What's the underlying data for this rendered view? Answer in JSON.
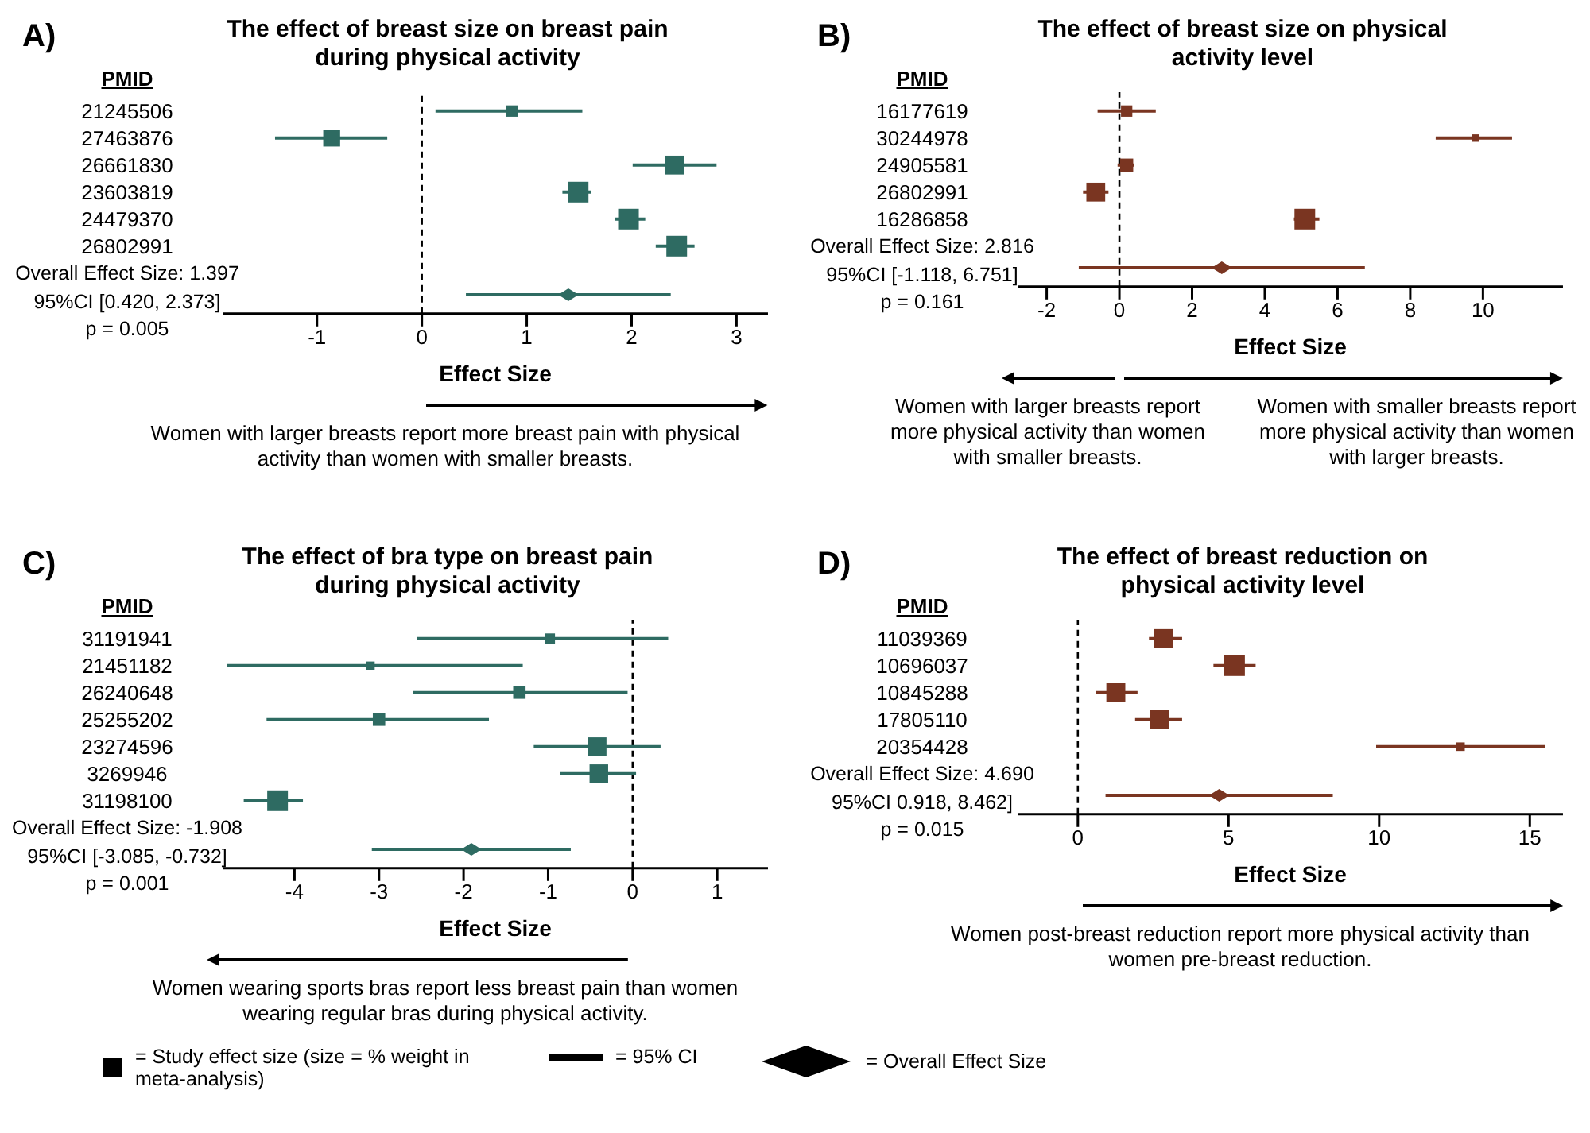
{
  "chart_data": [
    {
      "type": "bubble",
      "orientation": "horizontal",
      "title": "The effect of breast size on breast pain during physical activity",
      "ylabel": "PMID",
      "xlabel": "Effect Size",
      "categories": [
        "21245506",
        "27463876",
        "26661830",
        "23603819",
        "24479370",
        "26802991",
        null
      ],
      "xlim": [
        -1.9,
        3.3
      ],
      "xticks": [
        -1,
        0,
        1,
        2,
        3
      ],
      "ref_lines": [
        {
          "axis": "x",
          "value": 0,
          "line_style": "dashed"
        }
      ],
      "series": [
        {
          "type": "bubble",
          "marker": "square",
          "color": "#2e6b62",
          "values": [
            0.86,
            -0.86,
            2.41,
            1.49,
            1.97,
            2.43,
            null
          ],
          "sizes": [
            0.3,
            0.67,
            0.83,
            1,
            1,
            1,
            null
          ],
          "errors": [
            [
              0.13,
              1.53
            ],
            [
              -1.4,
              -0.33
            ],
            [
              2.01,
              2.81
            ],
            [
              1.34,
              1.61
            ],
            [
              1.84,
              2.13
            ],
            [
              2.23,
              2.6
            ],
            null
          ]
        },
        {
          "type": "scatter",
          "marker": "diamond",
          "color": "#2e6b62",
          "values": [
            null,
            null,
            null,
            null,
            null,
            null,
            1.397
          ],
          "errors": [
            null,
            null,
            null,
            null,
            null,
            null,
            [
              0.42,
              2.373
            ]
          ]
        }
      ],
      "annotations": [
        "A)",
        "Overall Effect Size: 1.397",
        "95%CI [0.420, 2.373]",
        "p = 0.005",
        "Women with larger breasts report more breast pain with physical activity than women with smaller breasts."
      ]
    },
    {
      "type": "bubble",
      "orientation": "horizontal",
      "title": "The effect of breast size on physical activity level",
      "ylabel": "PMID",
      "xlabel": "Effect Size",
      "categories": [
        "16177619",
        "30244978",
        "24905581",
        "26802991",
        "16286858",
        null
      ],
      "xlim": [
        -2.8,
        12.2
      ],
      "xticks": [
        -2,
        0,
        2,
        4,
        6,
        8,
        10
      ],
      "ref_lines": [
        {
          "axis": "x",
          "value": 0,
          "line_style": "dashed"
        }
      ],
      "series": [
        {
          "type": "bubble",
          "marker": "square",
          "color": "#7a3521",
          "values": [
            0.2,
            9.8,
            0.2,
            -0.65,
            5.1,
            null
          ],
          "sizes": [
            0.3,
            0.13,
            0.4,
            0.83,
            1,
            null
          ],
          "errors": [
            [
              -0.6,
              1.0
            ],
            [
              8.7,
              10.8
            ],
            [
              -0.05,
              0.4
            ],
            [
              -1.0,
              -0.3
            ],
            [
              4.8,
              5.5
            ],
            null
          ]
        },
        {
          "type": "scatter",
          "marker": "diamond",
          "color": "#7a3521",
          "values": [
            null,
            null,
            null,
            null,
            null,
            2.816
          ],
          "errors": [
            null,
            null,
            null,
            null,
            null,
            [
              -1.118,
              6.751
            ]
          ]
        }
      ],
      "annotations": [
        "B)",
        "Overall Effect Size: 2.816",
        "95%CI [-1.118, 6.751]",
        "p = 0.161",
        "Women with larger breasts report more physical activity than women with smaller breasts.",
        "Women with smaller breasts report more physical activity than women with larger breasts."
      ]
    },
    {
      "type": "bubble",
      "orientation": "horizontal",
      "title": "The effect of bra type on breast pain during physical activity",
      "ylabel": "PMID",
      "xlabel": "Effect Size",
      "categories": [
        "31191941",
        "21451182",
        "26240648",
        "25255202",
        "23274596",
        "3269946",
        "31198100",
        null
      ],
      "xlim": [
        -4.85,
        1.6
      ],
      "xticks": [
        -4,
        -3,
        -2,
        -1,
        0,
        1
      ],
      "ref_lines": [
        {
          "axis": "x",
          "value": 0,
          "line_style": "dashed"
        }
      ],
      "series": [
        {
          "type": "bubble",
          "marker": "square",
          "color": "#2e6b62",
          "values": [
            -0.98,
            -3.1,
            -1.34,
            -3.0,
            -0.42,
            -0.4,
            -4.2,
            null
          ],
          "sizes": [
            0.25,
            0.16,
            0.36,
            0.36,
            0.81,
            0.81,
            1,
            null
          ],
          "errors": [
            [
              -2.55,
              0.42
            ],
            [
              -4.8,
              -1.3
            ],
            [
              -2.6,
              -0.06
            ],
            [
              -4.33,
              -1.7
            ],
            [
              -1.17,
              0.33
            ],
            [
              -0.86,
              0.04
            ],
            [
              -4.6,
              -3.9
            ],
            null
          ]
        },
        {
          "type": "scatter",
          "marker": "diamond",
          "color": "#2e6b62",
          "values": [
            null,
            null,
            null,
            null,
            null,
            null,
            null,
            -1.908
          ],
          "errors": [
            null,
            null,
            null,
            null,
            null,
            null,
            null,
            [
              -3.085,
              -0.732
            ]
          ]
        }
      ],
      "annotations": [
        "C)",
        "Overall Effect Size: -1.908",
        "95%CI [-3.085, -0.732]",
        "p = 0.001",
        "Women wearing sports bras report less breast pain than women wearing regular bras during physical activity."
      ]
    },
    {
      "type": "bubble",
      "orientation": "horizontal",
      "title": "The effect of breast reduction on physical activity level",
      "ylabel": "PMID",
      "xlabel": "Effect Size",
      "categories": [
        "11039369",
        "10696037",
        "10845288",
        "17805110",
        "20354428",
        null
      ],
      "xlim": [
        -2,
        16.1
      ],
      "xticks": [
        0,
        5,
        10,
        15
      ],
      "ref_lines": [
        {
          "axis": "x",
          "value": 0,
          "line_style": "dashed"
        }
      ],
      "series": [
        {
          "type": "bubble",
          "marker": "square",
          "color": "#7a3521",
          "values": [
            2.85,
            5.2,
            1.26,
            2.7,
            12.7,
            null
          ],
          "sizes": [
            0.84,
            1,
            0.84,
            0.84,
            0.17,
            null
          ],
          "errors": [
            [
              2.36,
              3.46
            ],
            [
              4.5,
              5.9
            ],
            [
              0.6,
              1.98
            ],
            [
              1.9,
              3.46
            ],
            [
              9.9,
              15.5
            ],
            null
          ]
        },
        {
          "type": "scatter",
          "marker": "diamond",
          "color": "#7a3521",
          "values": [
            null,
            null,
            null,
            null,
            null,
            4.69
          ],
          "errors": [
            null,
            null,
            null,
            null,
            null,
            [
              0.918,
              8.462
            ]
          ]
        }
      ],
      "annotations": [
        "D)",
        "Overall Effect Size: 4.690",
        "95%CI 0.918, 8.462]",
        "p = 0.015",
        "Women post-breast reduction report more physical activity than women pre-breast reduction.",
        "= Study effect size (size = % weight in meta-analysis)",
        "= 95% CI",
        "= Overall Effect Size"
      ]
    }
  ]
}
